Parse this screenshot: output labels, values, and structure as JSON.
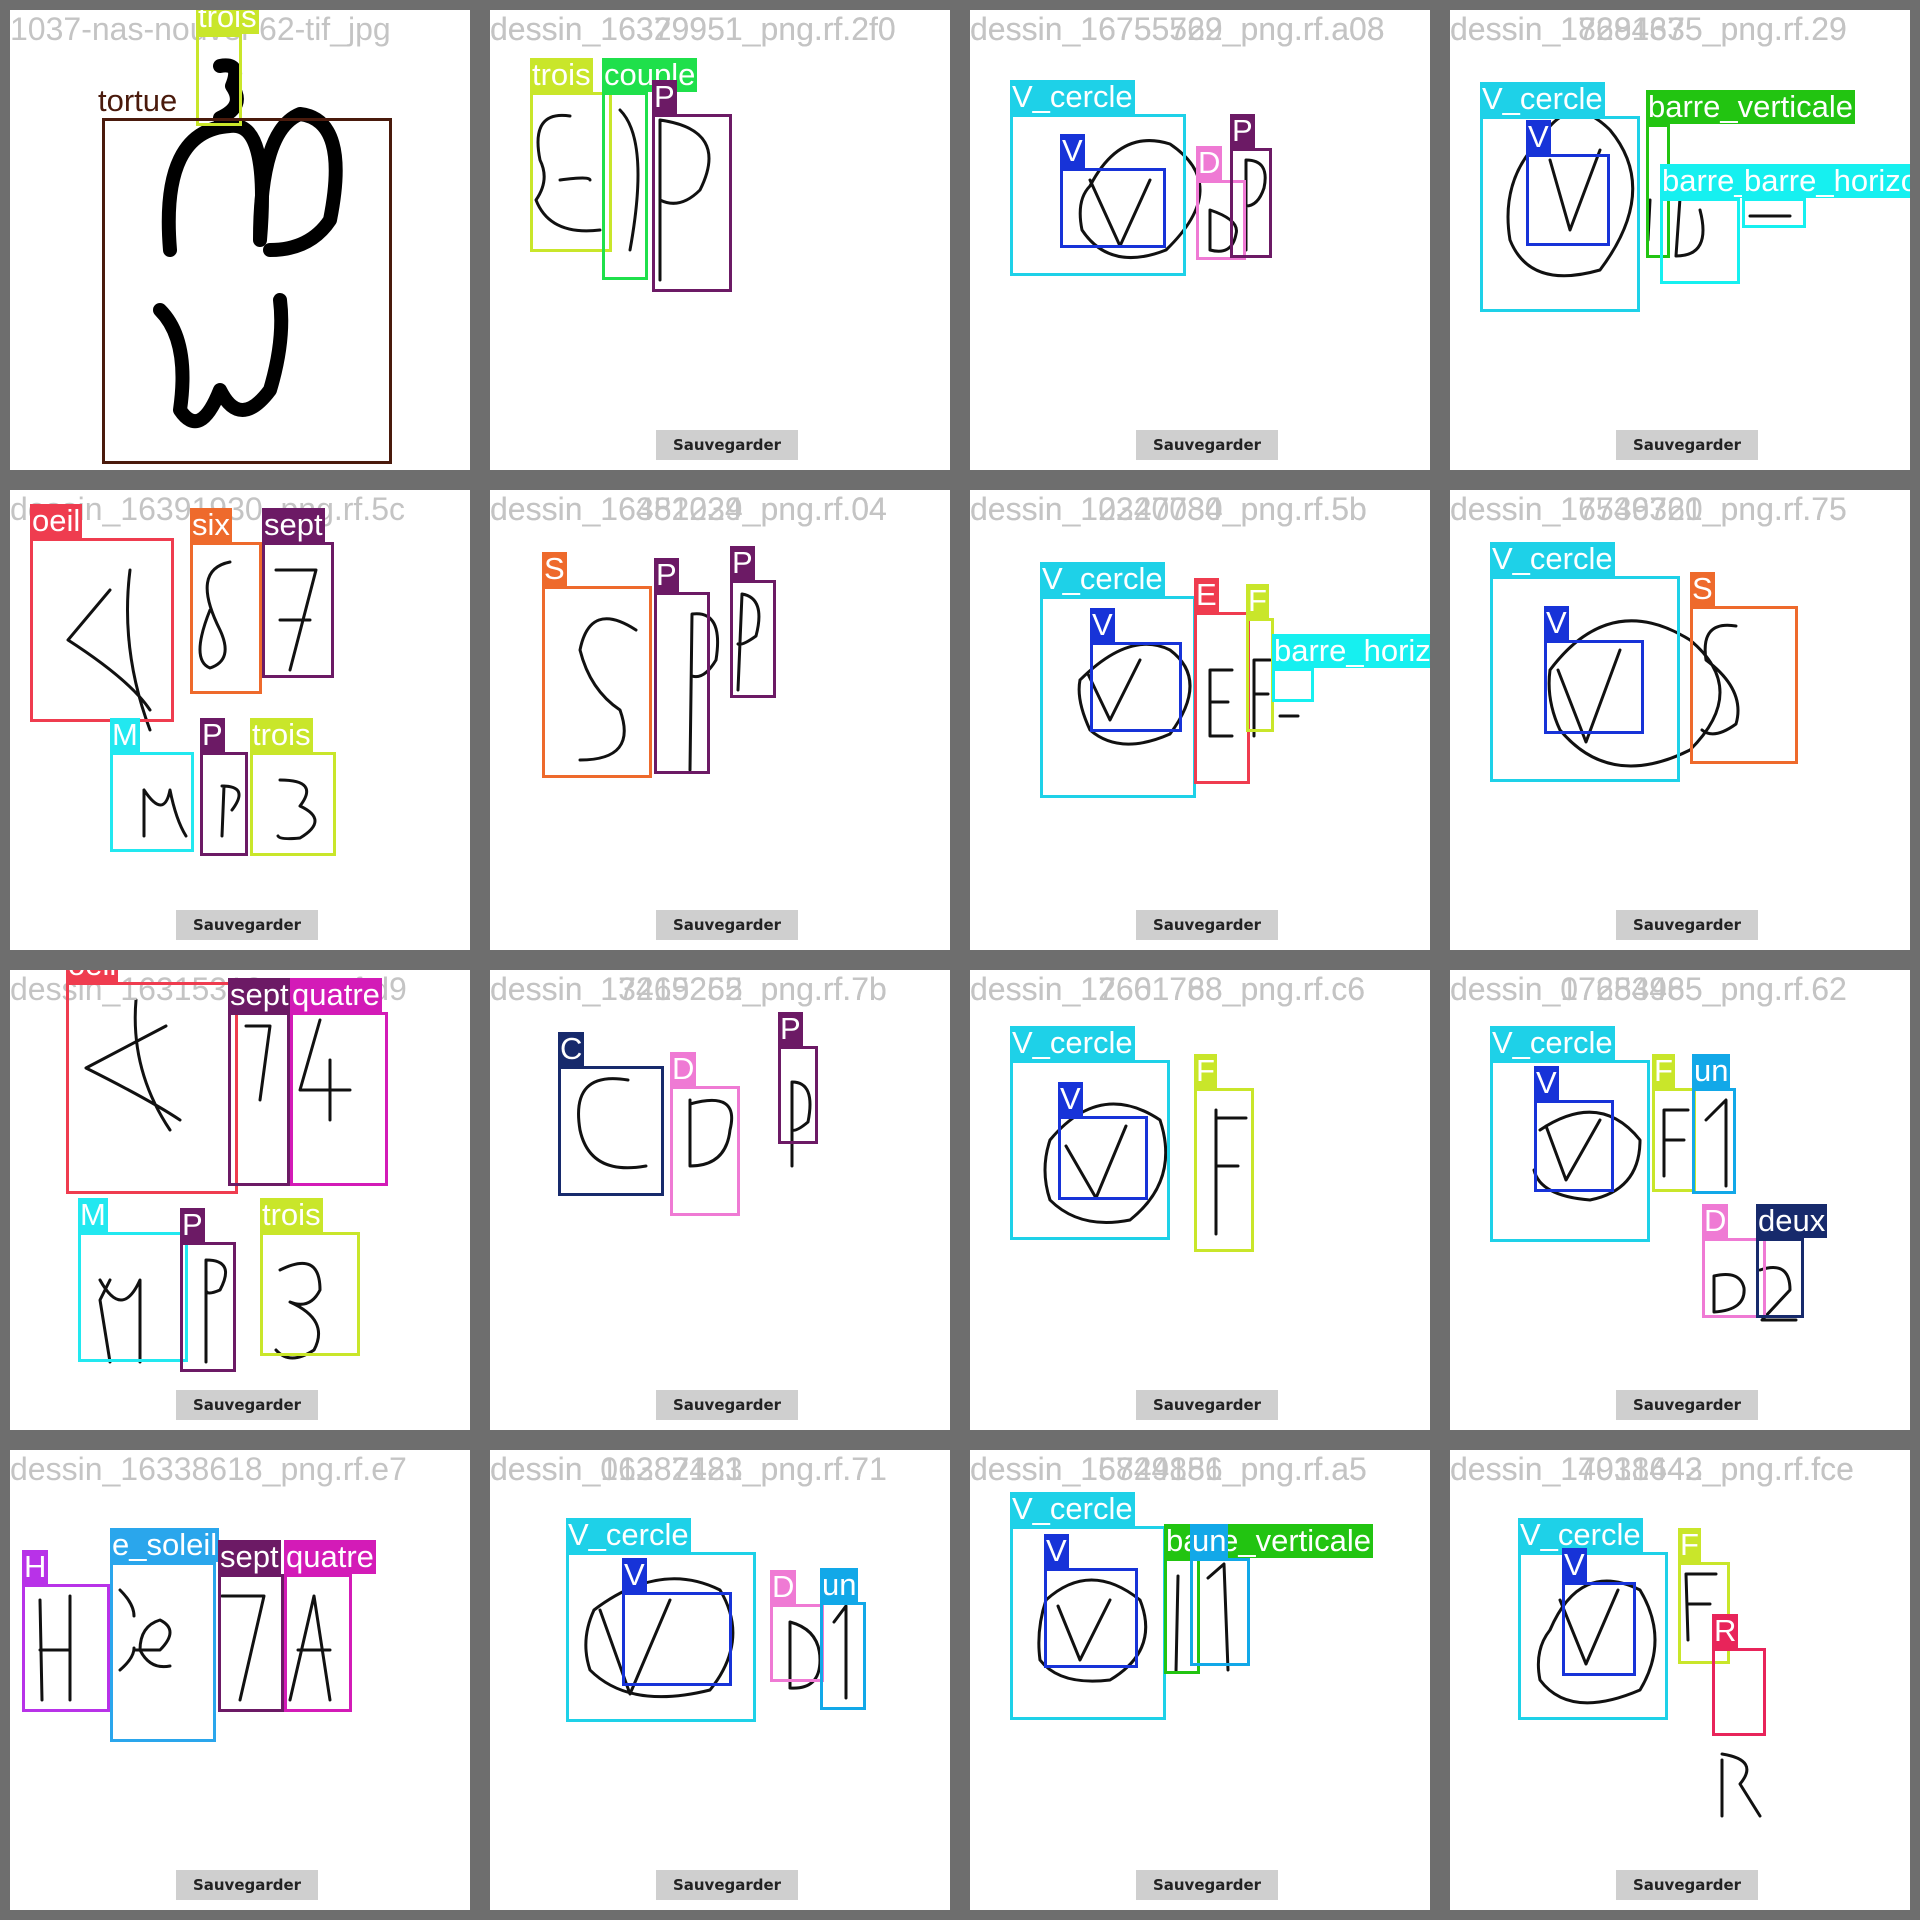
{
  "button_label": "Sauvegarder",
  "colors": {
    "trois": "#c9e62a",
    "couple": "#1fe04b",
    "P": "#6c1a65",
    "V": "#1733d8",
    "V_cercle": "#1ed1e8",
    "D": "#ef7ad4",
    "barre_verticale": "#22c411",
    "barre_horizontale": "#16f0f0",
    "oeil": "#ef3c4f",
    "six": "#ee6a2c",
    "sept": "#6c1a65",
    "M": "#22e8f0",
    "S": "#ee6a2c",
    "E": "#ef3c4f",
    "F": "#c9e62a",
    "quatre": "#d31bb7",
    "C": "#172a6c",
    "un": "#12a8e8",
    "deux": "#172a6c",
    "H": "#b832e8",
    "e_soleil": "#2aa6ec",
    "R": "#e8245a",
    "tortue": "#4a1a0c"
  },
  "tiles": [
    {
      "filename": "1037-nas-nouvel-62-tif_jpg",
      "has_button": false,
      "labels": [
        "trois",
        "tortue"
      ]
    },
    {
      "filename": "dessin_16379951_png.rf.2f0",
      "overlap_filename": "dessin_16329951_png.rf.2f0",
      "has_button": true,
      "labels": [
        "trois",
        "couple",
        "P"
      ]
    },
    {
      "filename": "dessin_16755762_png.rf.a08",
      "overlap_filename": "dessin_16755529_png.rf.a08",
      "has_button": true,
      "labels": [
        "V_cercle",
        "V",
        "D",
        "P"
      ]
    },
    {
      "filename": "dessin_17694375_png.rf.29",
      "overlap_filename": "dessin_18281635_png.rf.29",
      "has_button": true,
      "labels": [
        "V_cercle",
        "V",
        "barre_verticale",
        "barre_horizontale",
        "barre_horizontale"
      ]
    },
    {
      "filename": "dessin_16391930_png.rf.5c",
      "has_button": true,
      "labels": [
        "oeil",
        "six",
        "sept",
        "M",
        "P",
        "trois"
      ]
    },
    {
      "filename": "dessin_16381234_png.rf.04",
      "overlap_filename": "dessin_16452029_png.rf.04",
      "has_button": true,
      "labels": [
        "S",
        "P",
        "P"
      ]
    },
    {
      "filename": "dessin_10247084_png.rf.5b",
      "overlap_filename": "dessin_12320730_png.rf.5b",
      "has_button": true,
      "labels": [
        "V_cercle",
        "V",
        "E",
        "F",
        "barre_horizontale"
      ]
    },
    {
      "filename": "dessin_16739320_png.rf.75",
      "overlap_filename": "dessin_17546761_png.rf.75",
      "has_button": true,
      "labels": [
        "V_cercle",
        "V",
        "S"
      ]
    },
    {
      "filename": "dessin_16315312_png.rf.d9",
      "has_button": true,
      "labels": [
        "oeil",
        "sept",
        "quatre",
        "M",
        "P",
        "trois"
      ]
    },
    {
      "filename": "dessin_13419252_png.rf.7b",
      "overlap_filename": "dessin_17265265_png.rf.7b",
      "has_button": true,
      "labels": [
        "C",
        "D",
        "P"
      ]
    },
    {
      "filename": "dessin_17661768_png.rf.c6",
      "overlap_filename": "dessin_12601788_png.rf.c6",
      "has_button": true,
      "labels": [
        "V_cercle",
        "V",
        "F"
      ]
    },
    {
      "filename": "dessin_17654985_png.rf.62",
      "overlap_filename": "dessin_07283465_png.rf.62",
      "has_button": true,
      "labels": [
        "V_cercle",
        "V",
        "F",
        "un",
        "D",
        "deux"
      ]
    },
    {
      "filename": "dessin_16338618_png.rf.e7",
      "has_button": true,
      "labels": [
        "H",
        "e_soleil",
        "sept",
        "quatre"
      ]
    },
    {
      "filename": "dessin_16387483_png.rf.71",
      "overlap_filename": "dessin_01282121_png.rf.71",
      "has_button": true,
      "labels": [
        "V_cercle",
        "V",
        "D",
        "un"
      ]
    },
    {
      "filename": "dessin_16744856_png.rf.a5",
      "overlap_filename": "dessin_15829181_png.rf.a5",
      "has_button": true,
      "labels": [
        "V_cercle",
        "V",
        "barre_verticale",
        "un"
      ]
    },
    {
      "filename": "dessin_14918642_png.rf.fce",
      "overlap_filename": "dessin_17031443_png.rf.fce",
      "has_button": true,
      "labels": [
        "V_cercle",
        "V",
        "F",
        "R"
      ]
    }
  ]
}
